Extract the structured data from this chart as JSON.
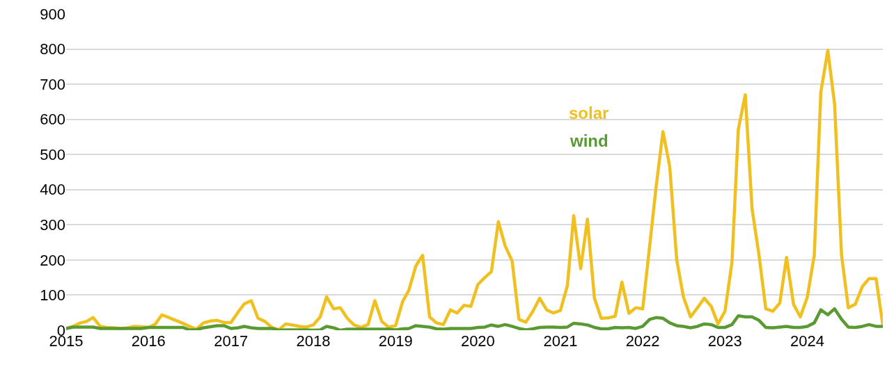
{
  "chart_data": {
    "type": "line",
    "x": [
      "2015-01",
      "2015-02",
      "2015-03",
      "2015-04",
      "2015-05",
      "2015-06",
      "2015-07",
      "2015-08",
      "2015-09",
      "2015-10",
      "2015-11",
      "2015-12",
      "2016-01",
      "2016-02",
      "2016-03",
      "2016-04",
      "2016-05",
      "2016-06",
      "2016-07",
      "2016-08",
      "2016-09",
      "2016-10",
      "2016-11",
      "2016-12",
      "2017-01",
      "2017-02",
      "2017-03",
      "2017-04",
      "2017-05",
      "2017-06",
      "2017-07",
      "2017-08",
      "2017-09",
      "2017-10",
      "2017-11",
      "2017-12",
      "2018-01",
      "2018-02",
      "2018-03",
      "2018-04",
      "2018-05",
      "2018-06",
      "2018-07",
      "2018-08",
      "2018-09",
      "2018-10",
      "2018-11",
      "2018-12",
      "2019-01",
      "2019-02",
      "2019-03",
      "2019-04",
      "2019-05",
      "2019-06",
      "2019-07",
      "2019-08",
      "2019-09",
      "2019-10",
      "2019-11",
      "2019-12",
      "2020-01",
      "2020-02",
      "2020-03",
      "2020-04",
      "2020-05",
      "2020-06",
      "2020-07",
      "2020-08",
      "2020-09",
      "2020-10",
      "2020-11",
      "2020-12",
      "2021-01",
      "2021-02",
      "2021-03",
      "2021-04",
      "2021-05",
      "2021-06",
      "2021-07",
      "2021-08",
      "2021-09",
      "2021-10",
      "2021-11",
      "2021-12",
      "2022-01",
      "2022-02",
      "2022-03",
      "2022-04",
      "2022-05",
      "2022-06",
      "2022-07",
      "2022-08",
      "2022-09",
      "2022-10",
      "2022-11",
      "2022-12",
      "2023-01",
      "2023-02",
      "2023-03",
      "2023-04",
      "2023-05",
      "2023-06",
      "2023-07",
      "2023-08",
      "2023-09",
      "2023-10",
      "2023-11",
      "2023-12",
      "2024-01",
      "2024-02",
      "2024-03",
      "2024-04",
      "2024-05",
      "2024-06",
      "2024-07",
      "2024-08",
      "2024-09",
      "2024-10",
      "2024-11",
      "2024-12"
    ],
    "series": [
      {
        "name": "solar",
        "color": "#f0c020",
        "values": [
          5,
          11,
          20,
          25,
          36,
          11,
          8,
          7,
          5,
          7,
          11,
          10,
          8,
          18,
          44,
          36,
          28,
          20,
          11,
          3,
          21,
          26,
          28,
          22,
          22,
          51,
          75,
          84,
          34,
          25,
          8,
          1,
          18,
          15,
          11,
          9,
          15,
          38,
          95,
          61,
          64,
          34,
          15,
          8,
          16,
          84,
          25,
          9,
          13,
          81,
          114,
          183,
          213,
          38,
          21,
          16,
          58,
          49,
          71,
          68,
          130,
          150,
          167,
          309,
          240,
          197,
          31,
          23,
          54,
          91,
          58,
          49,
          56,
          127,
          326,
          175,
          316,
          91,
          34,
          35,
          40,
          137,
          48,
          64,
          61,
          240,
          405,
          565,
          465,
          200,
          94,
          38,
          64,
          91,
          68,
          18,
          54,
          193,
          571,
          670,
          346,
          213,
          61,
          54,
          77,
          207,
          74,
          38,
          94,
          213,
          677,
          796,
          644,
          213,
          64,
          74,
          124,
          147,
          147,
          15
        ]
      },
      {
        "name": "wind",
        "color": "#5a9a32",
        "values": [
          5,
          9,
          9,
          9,
          9,
          5,
          5,
          5,
          5,
          5,
          5,
          5,
          8,
          8,
          8,
          8,
          8,
          8,
          1,
          1,
          7,
          10,
          13,
          13,
          5,
          7,
          11,
          7,
          5,
          5,
          5,
          0,
          1,
          1,
          1,
          1,
          0,
          1,
          11,
          7,
          0,
          3,
          3,
          3,
          3,
          3,
          3,
          3,
          1,
          4,
          5,
          13,
          11,
          9,
          4,
          3,
          5,
          5,
          5,
          5,
          8,
          9,
          15,
          11,
          16,
          11,
          5,
          1,
          4,
          8,
          9,
          9,
          8,
          9,
          20,
          18,
          15,
          8,
          4,
          4,
          8,
          7,
          8,
          5,
          11,
          31,
          36,
          34,
          21,
          13,
          11,
          7,
          11,
          18,
          16,
          8,
          8,
          16,
          41,
          38,
          38,
          28,
          8,
          7,
          9,
          11,
          8,
          8,
          11,
          21,
          58,
          44,
          61,
          31,
          9,
          8,
          11,
          16,
          11,
          11
        ]
      }
    ],
    "xlim": [
      "2015-01",
      "2024-12"
    ],
    "xticks": [
      "2015",
      "2016",
      "2017",
      "2018",
      "2019",
      "2020",
      "2021",
      "2022",
      "2023",
      "2024"
    ],
    "ylim": [
      0,
      900
    ],
    "yticks": [
      0,
      100,
      200,
      300,
      400,
      500,
      600,
      700,
      800,
      900
    ],
    "grid": "y",
    "legend": false,
    "marker": "none",
    "line_style": "solid"
  }
}
